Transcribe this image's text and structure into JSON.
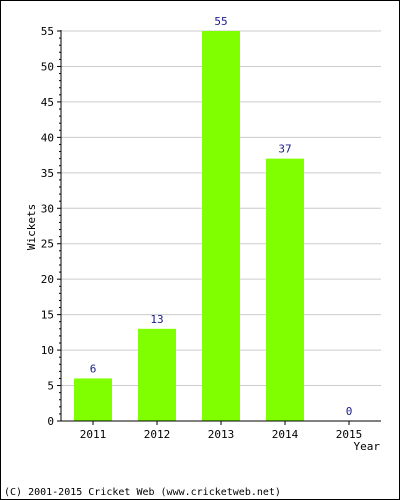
{
  "chart_data": {
    "type": "bar",
    "categories": [
      "2011",
      "2012",
      "2013",
      "2014",
      "2015"
    ],
    "values": [
      6,
      13,
      55,
      37,
      0
    ],
    "data_labels": [
      "6",
      "13",
      "55",
      "37",
      "0"
    ],
    "xlabel": "Year",
    "ylabel": "Wickets",
    "ylim": [
      0,
      55
    ],
    "yticks": [
      0,
      5,
      10,
      15,
      20,
      25,
      30,
      35,
      40,
      45,
      50,
      55
    ],
    "grid": true,
    "colors": {
      "bar": "#80ff00",
      "grid": "#cccccc",
      "data_label": "#1a1a8c"
    }
  },
  "footer": "(C) 2001-2015 Cricket Web (www.cricketweb.net)"
}
